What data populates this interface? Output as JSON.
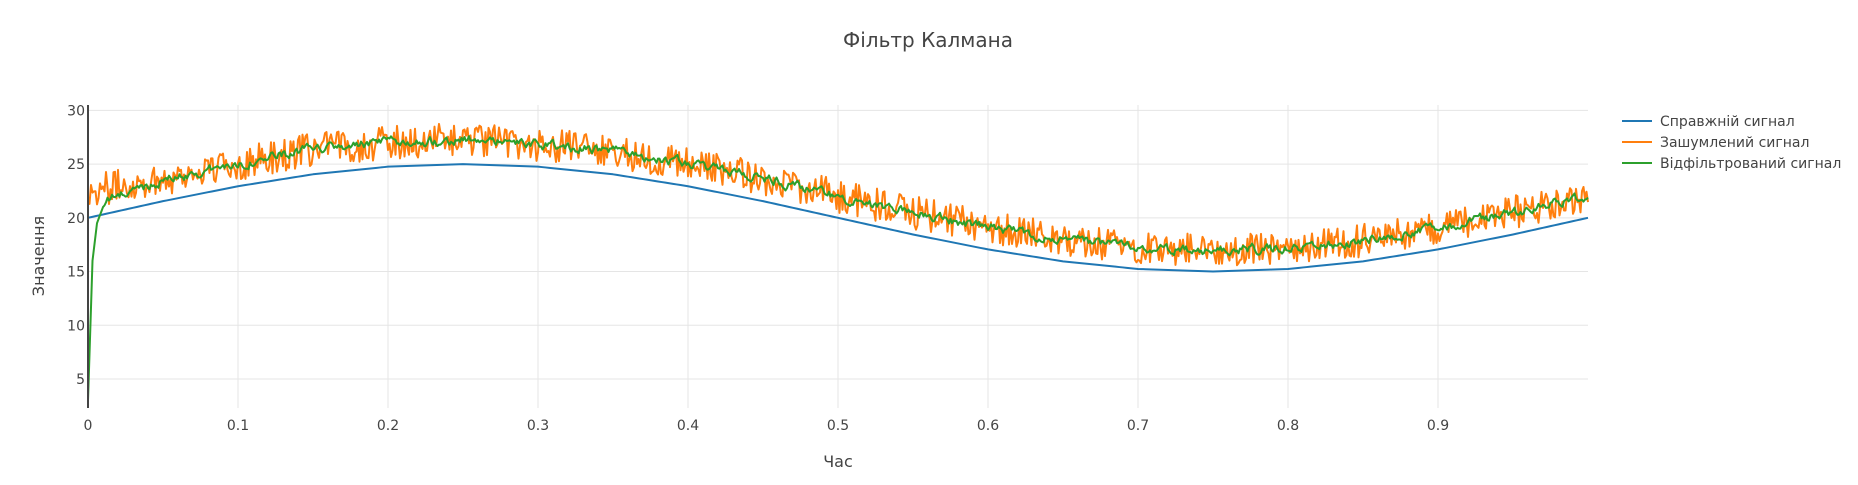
{
  "chart_data": {
    "type": "line",
    "title": "Фільтр Калмана",
    "xlabel": "Час",
    "ylabel": "Значення",
    "xlim": [
      0,
      1
    ],
    "ylim": [
      2.3,
      30.5
    ],
    "xticks": [
      0,
      0.1,
      0.2,
      0.3,
      0.4,
      0.5,
      0.6,
      0.7,
      0.8,
      0.9
    ],
    "xtick_labels": [
      "0",
      "0.1",
      "0.2",
      "0.3",
      "0.4",
      "0.5",
      "0.6",
      "0.7",
      "0.8",
      "0.9"
    ],
    "yticks": [
      5,
      10,
      15,
      20,
      25,
      30
    ],
    "ytick_labels": [
      "5",
      "10",
      "15",
      "20",
      "25",
      "30"
    ],
    "grid": true,
    "legend_position": "top-right",
    "series": [
      {
        "name": "Справжній сигнал",
        "color": "#1f77b4",
        "x": [
          0,
          0.05,
          0.1,
          0.15,
          0.2,
          0.25,
          0.3,
          0.35,
          0.4,
          0.45,
          0.5,
          0.55,
          0.6,
          0.65,
          0.7,
          0.75,
          0.8,
          0.85,
          0.9,
          0.95,
          1.0
        ],
        "y": [
          20.0,
          21.55,
          22.94,
          24.05,
          24.76,
          25.0,
          24.76,
          24.05,
          22.94,
          21.55,
          20.0,
          18.45,
          17.06,
          15.95,
          15.24,
          15.0,
          15.24,
          15.95,
          17.06,
          18.45,
          20.0
        ]
      },
      {
        "name": "Зашумлений сигнал",
        "color": "#ff7f0e",
        "x": [
          0,
          0.05,
          0.1,
          0.15,
          0.2,
          0.25,
          0.3,
          0.35,
          0.4,
          0.45,
          0.5,
          0.55,
          0.6,
          0.65,
          0.7,
          0.75,
          0.8,
          0.85,
          0.9,
          0.95,
          1.0
        ],
        "y": [
          22.5,
          23.6,
          25.0,
          26.4,
          27.0,
          27.3,
          26.8,
          26.2,
          25.0,
          23.7,
          22.0,
          20.5,
          19.1,
          18.0,
          17.2,
          17.0,
          17.2,
          17.9,
          19.0,
          20.5,
          22.0
        ]
      },
      {
        "name": "Відфільтрований сигнал",
        "color": "#2ca02c",
        "x": [
          0,
          0.003,
          0.006,
          0.01,
          0.015,
          0.05,
          0.1,
          0.15,
          0.2,
          0.25,
          0.3,
          0.35,
          0.4,
          0.45,
          0.5,
          0.55,
          0.6,
          0.65,
          0.7,
          0.75,
          0.8,
          0.85,
          0.9,
          0.95,
          1.0
        ],
        "y": [
          3.0,
          16.0,
          19.5,
          21.0,
          21.8,
          23.5,
          25.0,
          26.4,
          27.0,
          27.3,
          26.8,
          26.2,
          25.0,
          23.7,
          22.0,
          20.5,
          19.1,
          18.0,
          17.2,
          17.0,
          17.2,
          17.9,
          19.0,
          20.5,
          22.0
        ]
      }
    ]
  }
}
